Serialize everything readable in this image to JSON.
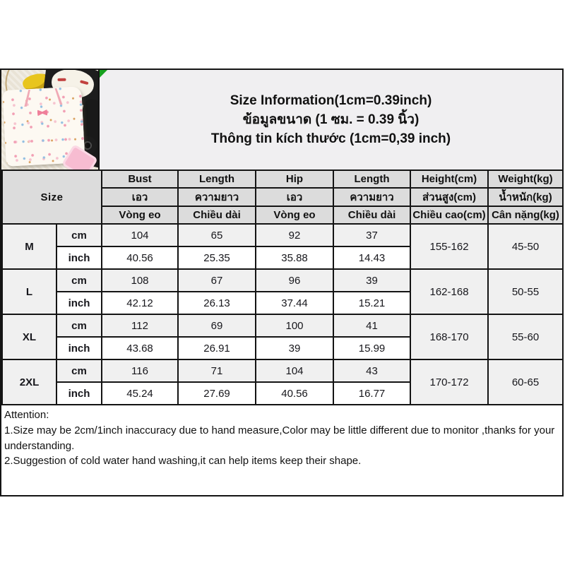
{
  "photo": {
    "description": "Flat-lay product photo: cream kids pajama top with cartoon kitty print, cat-face bag, yellow toy and dark items on a textured beige towel"
  },
  "title": {
    "line_en": "Size Information(1cm=0.39inch)",
    "line_th": "ข้อมูลขนาด (1 ซม. = 0.39 นิ้ว)",
    "line_vi": "Thông tin kích thước (1cm=0,39 inch)"
  },
  "table": {
    "corner_label": "Size",
    "headers": {
      "en": [
        "Bust",
        "Length",
        "Hip",
        "Length",
        "Height(cm)",
        "Weight(kg)"
      ],
      "th": [
        "เอว",
        "ความยาว",
        "เอว",
        "ความยาว",
        "ส่วนสูง(cm)",
        "น้ำหนัก(kg)"
      ],
      "vi": [
        "Vòng eo",
        "Chiều dài",
        "Vòng eo",
        "Chiều dài",
        "Chiều cao(cm)",
        "Cân nặng(kg)"
      ]
    },
    "unit_labels": [
      "cm",
      "inch"
    ],
    "rows": [
      {
        "size": "M",
        "cm": [
          "104",
          "65",
          "92",
          "37"
        ],
        "inch": [
          "40.56",
          "25.35",
          "35.88",
          "14.43"
        ],
        "height": "155-162",
        "weight": "45-50"
      },
      {
        "size": "L",
        "cm": [
          "108",
          "67",
          "96",
          "39"
        ],
        "inch": [
          "42.12",
          "26.13",
          "37.44",
          "15.21"
        ],
        "height": "162-168",
        "weight": "50-55"
      },
      {
        "size": "XL",
        "cm": [
          "112",
          "69",
          "100",
          "41"
        ],
        "inch": [
          "43.68",
          "26.91",
          "39",
          "15.99"
        ],
        "height": "168-170",
        "weight": "55-60"
      },
      {
        "size": "2XL",
        "cm": [
          "116",
          "71",
          "104",
          "43"
        ],
        "inch": [
          "45.24",
          "27.69",
          "40.56",
          "16.77"
        ],
        "height": "170-172",
        "weight": "60-65"
      }
    ]
  },
  "attention": {
    "heading": "Attention:",
    "notes": [
      "1.Size may be 2cm/1inch inaccuracy due to hand measure,Color may be little different due to monitor ,thanks for your understanding.",
      "2.Suggestion of cold water hand washing,it can help items keep their shape."
    ]
  },
  "colors": {
    "header_bg": "#dcdcdc",
    "size_col_bg": "#d9d9d9",
    "cm_row_bg": "#f0f0f0",
    "inch_row_bg": "#ffffff",
    "title_band_bg": "#f0eff1",
    "border": "#141414",
    "flag_green": "#16a01e"
  }
}
